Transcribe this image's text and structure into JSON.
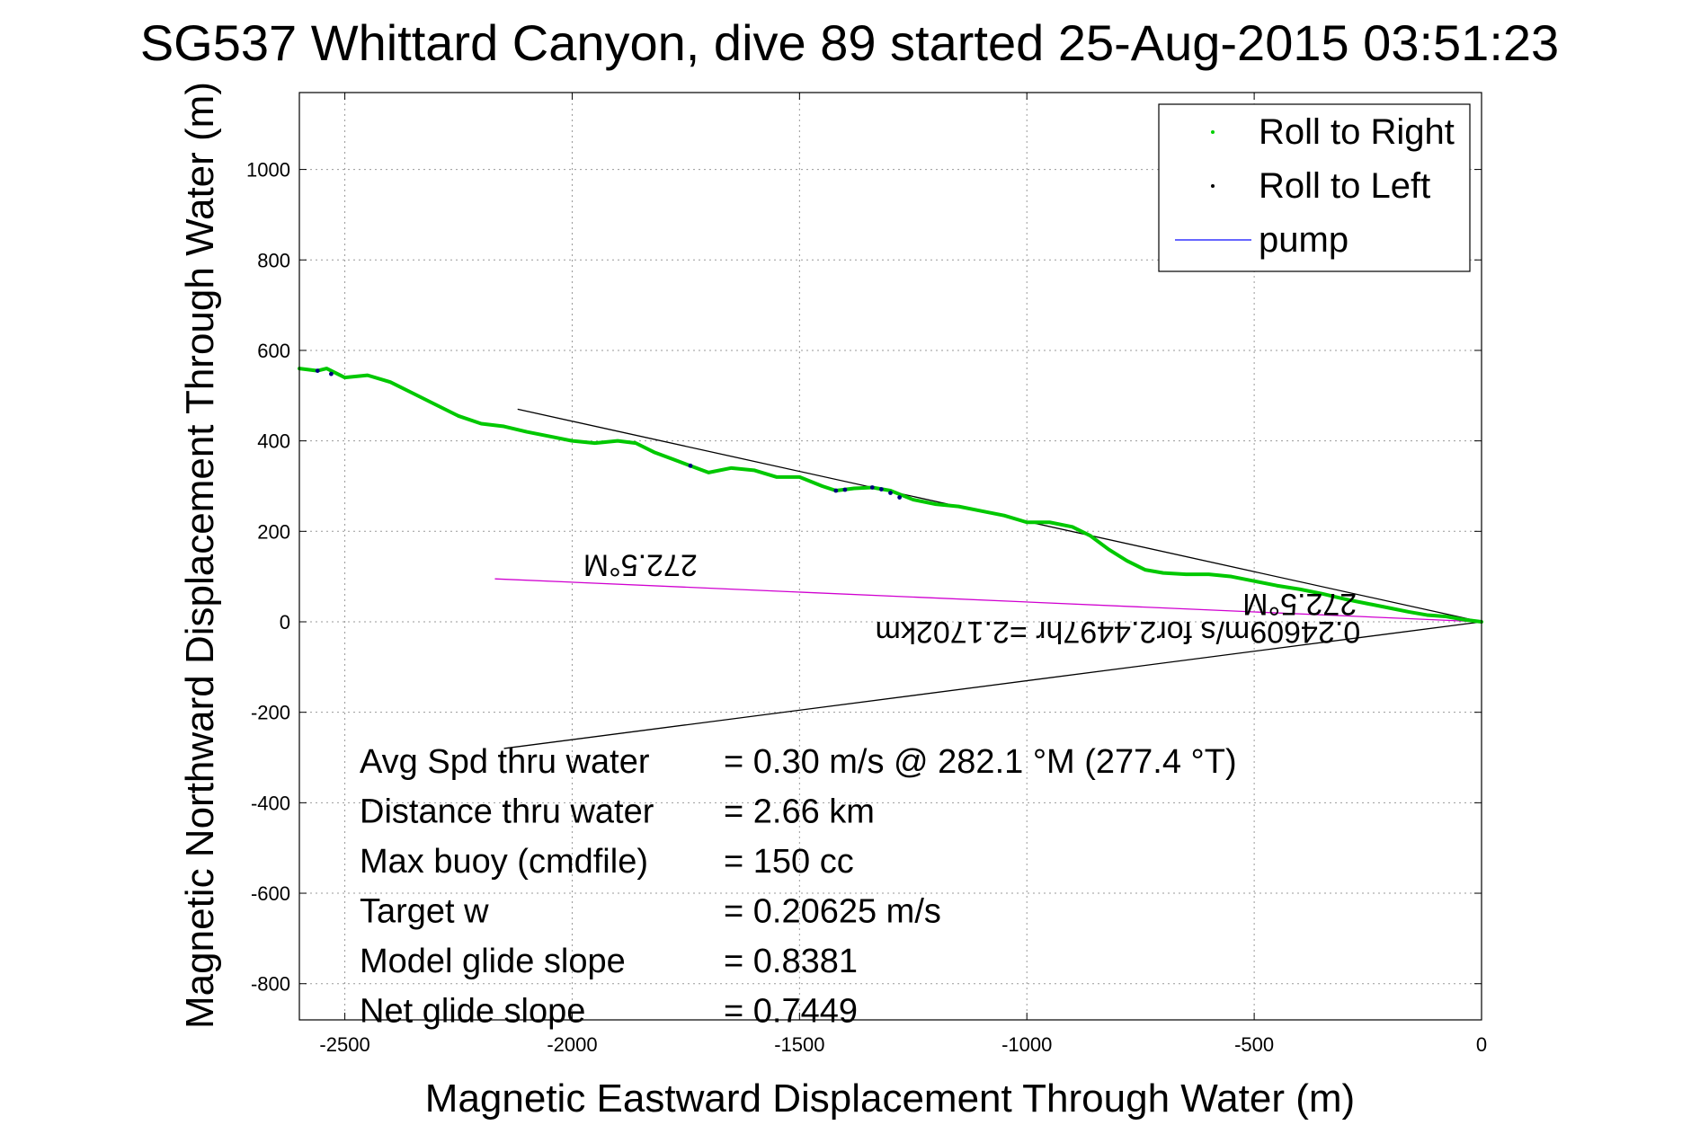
{
  "chart_data": {
    "type": "line",
    "title": "SG537 Whittard Canyon, dive 89 started 25-Aug-2015 03:51:23",
    "xlabel": "Magnetic Eastward Displacement Through Water (m)",
    "ylabel": "Magnetic Northward Displacement Through Water (m)",
    "xlim": [
      -2600,
      0
    ],
    "ylim": [
      -880,
      1170
    ],
    "xticks": [
      -2500,
      -2000,
      -1500,
      -1000,
      -500,
      0
    ],
    "yticks": [
      -800,
      -600,
      -400,
      -200,
      0,
      200,
      400,
      600,
      800,
      1000
    ],
    "grid": true,
    "legend_position": "top-right",
    "legend": [
      {
        "label": "Roll to Right",
        "marker": "dot",
        "color": "#00d000"
      },
      {
        "label": "Roll to Left",
        "marker": "dot",
        "color": "#000000"
      },
      {
        "label": "pump",
        "marker": "line",
        "color": "#3333ff"
      }
    ],
    "series": [
      {
        "name": "Roll to Right",
        "color": "#00c800",
        "x": [
          0,
          -40,
          -80,
          -120,
          -160,
          -200,
          -250,
          -300,
          -350,
          -400,
          -450,
          -500,
          -550,
          -600,
          -650,
          -700,
          -740,
          -780,
          -820,
          -860,
          -900,
          -950,
          -1000,
          -1050,
          -1100,
          -1150,
          -1200,
          -1250,
          -1300,
          -1340,
          -1380,
          -1420,
          -1450,
          -1500,
          -1550,
          -1600,
          -1650,
          -1700,
          -1740,
          -1780,
          -1820,
          -1860,
          -1900,
          -1950,
          -2000,
          -2050,
          -2100,
          -2150,
          -2200,
          -2250,
          -2300,
          -2350,
          -2400,
          -2450,
          -2500,
          -2540,
          -2560,
          -2600
        ],
        "y": [
          0,
          5,
          12,
          15,
          22,
          30,
          40,
          50,
          62,
          72,
          80,
          90,
          100,
          105,
          105,
          108,
          115,
          135,
          160,
          190,
          210,
          220,
          220,
          235,
          245,
          255,
          260,
          270,
          290,
          297,
          295,
          290,
          300,
          320,
          320,
          335,
          340,
          330,
          345,
          360,
          375,
          395,
          400,
          395,
          400,
          410,
          420,
          432,
          438,
          455,
          480,
          505,
          530,
          545,
          540,
          560,
          555,
          560
        ]
      },
      {
        "name": "Roll to Left",
        "color": "#000080",
        "x": [
          -1280,
          -1300,
          -1320,
          -1340,
          -1400,
          -1420,
          -1740,
          -2530,
          -2560
        ],
        "y": [
          275,
          285,
          293,
          297,
          292,
          290,
          345,
          548,
          555
        ]
      }
    ],
    "reference_lines": [
      {
        "color": "#000000",
        "x": [
          0,
          -2120
        ],
        "y": [
          0,
          470
        ]
      },
      {
        "color": "#000000",
        "x": [
          0,
          -2150
        ],
        "y": [
          0,
          -280
        ]
      },
      {
        "color": "#d000d0",
        "x": [
          0,
          -2170
        ],
        "y": [
          0,
          95
        ]
      }
    ],
    "annotations": [
      {
        "text": "272.5°M",
        "x": -1850,
        "y": 148,
        "rotation": 180
      },
      {
        "text": "272.5°M",
        "x": -400,
        "y": 62,
        "rotation": 180
      },
      {
        "text": "0.24609m/s for2.4497hr =2.1702km",
        "x": -800,
        "y": 0,
        "rotation": 180
      }
    ],
    "stats": [
      {
        "label": "Avg Spd thru water",
        "value": "=  0.30 m/s @ 282.1 °M (277.4 °T)"
      },
      {
        "label": "Distance thru water",
        "value": "=  2.66 km"
      },
      {
        "label": "Max buoy (cmdfile)",
        "value": "= 150 cc"
      },
      {
        "label": "Target w",
        "value": "= 0.20625 m/s"
      },
      {
        "label": "Model glide slope",
        "value": "= 0.8381"
      },
      {
        "label": "Net glide slope",
        "value": "= 0.7449"
      }
    ]
  }
}
